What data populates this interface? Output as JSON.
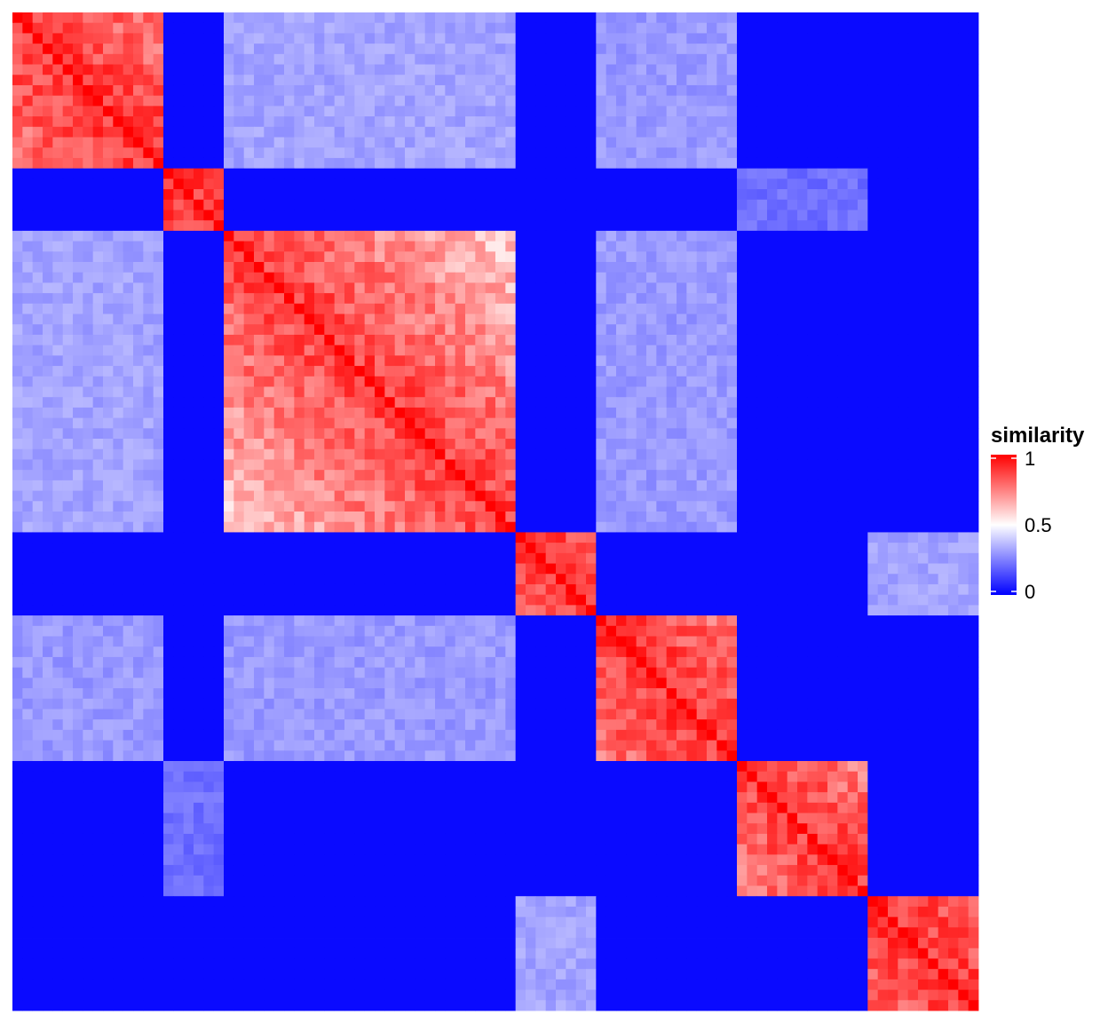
{
  "chart_data": {
    "type": "heatmap",
    "title": "",
    "xlabel": "",
    "ylabel": "",
    "legend": {
      "title": "similarity",
      "placement": "right",
      "ticks": [
        {
          "value": 1,
          "label": "1"
        },
        {
          "value": 0.5,
          "label": "0.5"
        },
        {
          "value": 0,
          "label": "0"
        }
      ]
    },
    "color_scale": {
      "low": "#0000ff",
      "mid": "#ffffff",
      "high": "#ff0000",
      "min": 0,
      "midpoint": 0.5,
      "max": 1
    },
    "n": 96,
    "grid": false,
    "background_value": 0.02,
    "blocks": [
      {
        "rows": [
          0,
          15
        ],
        "cols": [
          0,
          15
        ],
        "value": 0.9
      },
      {
        "rows": [
          15,
          21
        ],
        "cols": [
          15,
          21
        ],
        "value": 0.9
      },
      {
        "rows": [
          21,
          50
        ],
        "cols": [
          21,
          50
        ],
        "value": 0.88
      },
      {
        "rows": [
          50,
          58
        ],
        "cols": [
          50,
          58
        ],
        "value": 0.9
      },
      {
        "rows": [
          58,
          72
        ],
        "cols": [
          58,
          72
        ],
        "value": 0.9
      },
      {
        "rows": [
          72,
          85
        ],
        "cols": [
          72,
          85
        ],
        "value": 0.88
      },
      {
        "rows": [
          85,
          96
        ],
        "cols": [
          85,
          96
        ],
        "value": 0.9
      }
    ],
    "off_blocks": [
      {
        "a": [
          0,
          15
        ],
        "b": [
          21,
          50
        ],
        "value": 0.32
      },
      {
        "a": [
          0,
          15
        ],
        "b": [
          58,
          72
        ],
        "value": 0.3
      },
      {
        "a": [
          21,
          50
        ],
        "b": [
          58,
          72
        ],
        "value": 0.3
      },
      {
        "a": [
          15,
          21
        ],
        "b": [
          72,
          85
        ],
        "value": 0.22
      },
      {
        "a": [
          50,
          58
        ],
        "b": [
          85,
          96
        ],
        "value": 0.32
      }
    ]
  }
}
